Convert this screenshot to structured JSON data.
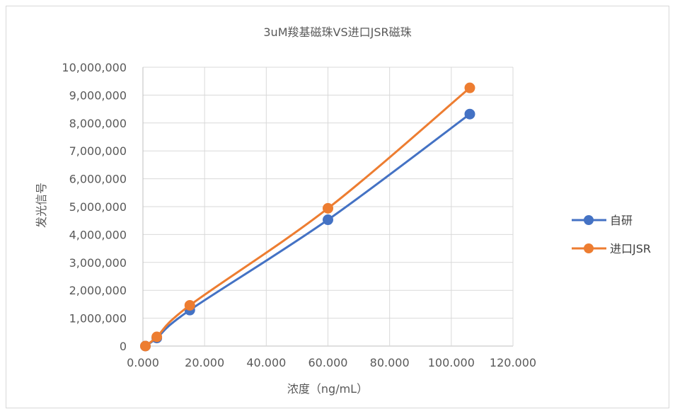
{
  "chart_data": {
    "type": "scatter",
    "title": "3uM羧基磁珠VS进口JSR磁珠",
    "xlabel": "浓度（ng/mL）",
    "ylabel": "发光信号",
    "xlim": [
      0,
      120
    ],
    "ylim": [
      0,
      10000000
    ],
    "x_ticks": [
      "0.000",
      "20.000",
      "40.000",
      "60.000",
      "80.000",
      "100.000",
      "120.000"
    ],
    "y_ticks": [
      "0",
      "1,000,000",
      "2,000,000",
      "3,000,000",
      "4,000,000",
      "5,000,000",
      "6,000,000",
      "7,000,000",
      "8,000,000",
      "9,000,000",
      "10,000,000"
    ],
    "grid": true,
    "smooth_lines": true,
    "legend_position": "right",
    "series": [
      {
        "name": "自研",
        "color": "#4472c4",
        "x": [
          0.8,
          4.5,
          15.2,
          60.0,
          106.0
        ],
        "y": [
          0,
          290000,
          1290000,
          4530000,
          8320000
        ]
      },
      {
        "name": "进口JSR",
        "color": "#ed7d31",
        "x": [
          0.8,
          4.5,
          15.2,
          60.0,
          106.0
        ],
        "y": [
          0,
          330000,
          1460000,
          4940000,
          9260000
        ]
      }
    ]
  }
}
